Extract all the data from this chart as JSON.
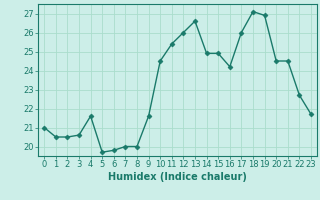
{
  "x": [
    0,
    1,
    2,
    3,
    4,
    5,
    6,
    7,
    8,
    9,
    10,
    11,
    12,
    13,
    14,
    15,
    16,
    17,
    18,
    19,
    20,
    21,
    22,
    23
  ],
  "y": [
    21.0,
    20.5,
    20.5,
    20.6,
    21.6,
    19.7,
    19.8,
    20.0,
    20.0,
    21.6,
    24.5,
    25.4,
    26.0,
    26.6,
    24.9,
    24.9,
    24.2,
    26.0,
    27.1,
    26.9,
    24.5,
    24.5,
    22.7,
    21.7
  ],
  "line_color": "#1a7a6a",
  "marker": "D",
  "markersize": 2.5,
  "linewidth": 1.0,
  "bg_color": "#cceee8",
  "grid_color": "#aaddcc",
  "xlabel": "Humidex (Indice chaleur)",
  "ylabel": "",
  "xlim": [
    -0.5,
    23.5
  ],
  "ylim": [
    19.5,
    27.5
  ],
  "yticks": [
    20,
    21,
    22,
    23,
    24,
    25,
    26,
    27
  ],
  "xticks": [
    0,
    1,
    2,
    3,
    4,
    5,
    6,
    7,
    8,
    9,
    10,
    11,
    12,
    13,
    14,
    15,
    16,
    17,
    18,
    19,
    20,
    21,
    22,
    23
  ],
  "xlabel_fontsize": 7.0,
  "tick_fontsize": 6.0
}
